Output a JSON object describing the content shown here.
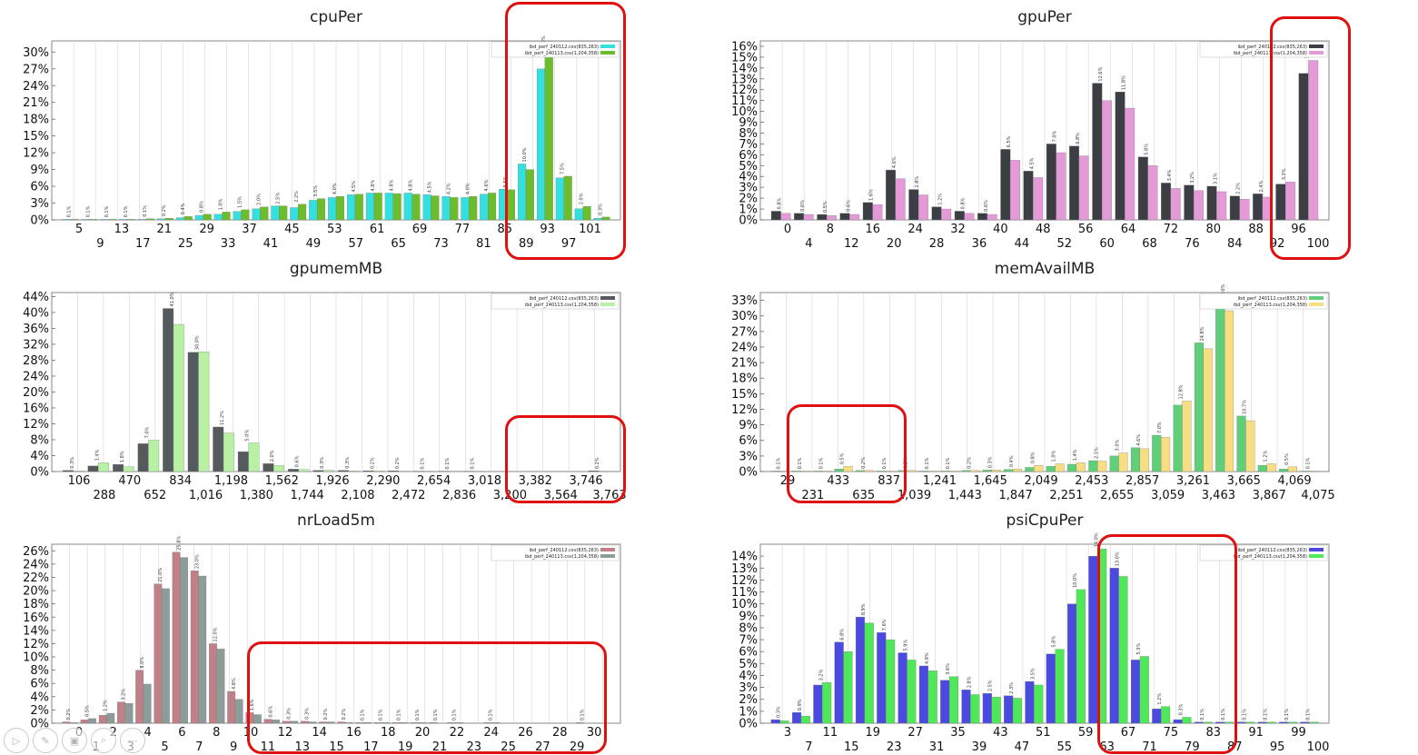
{
  "legend_labels": [
    "ibd_perf_240112.csv(835,263)",
    "ibd_perf_240113.csv(1,204,358)"
  ],
  "chart_data": [
    {
      "type": "bar",
      "title": "cpuPer",
      "colors": [
        "#33e0e0",
        "#6cbd2c"
      ],
      "ylim": [
        0,
        32
      ],
      "y_ticks": [
        "0%",
        "3%",
        "6%",
        "9%",
        "12%",
        "15%",
        "18%",
        "21%",
        "24%",
        "27%",
        "30%"
      ],
      "x_ticks_row1": [
        "5",
        "13",
        "21",
        "29",
        "37",
        "45",
        "53",
        "61",
        "69",
        "77",
        "85",
        "93",
        "101"
      ],
      "x_ticks_row2": [
        "9",
        "17",
        "25",
        "33",
        "41",
        "49",
        "57",
        "65",
        "73",
        "81",
        "89",
        "97"
      ],
      "series": [
        {
          "values": [
            0.1,
            0.1,
            0.1,
            0.1,
            0.1,
            0.2,
            0.4,
            0.8,
            1.0,
            1.5,
            2.0,
            2.5,
            2.2,
            3.5,
            4.0,
            4.5,
            4.8,
            4.8,
            4.8,
            4.5,
            4.2,
            4.0,
            4.6,
            5.5,
            10.0,
            27.0,
            7.5,
            2.0,
            0.3
          ]
        },
        {
          "values": [
            0.1,
            0.1,
            0.1,
            0.1,
            0.2,
            0.3,
            0.6,
            1.0,
            1.4,
            1.8,
            2.3,
            2.5,
            2.8,
            3.8,
            4.2,
            4.6,
            4.8,
            4.7,
            4.6,
            4.3,
            4.0,
            4.2,
            4.8,
            5.4,
            9.0,
            30.0,
            7.8,
            2.4,
            0.5
          ]
        }
      ],
      "data_labels": [
        "0.1%",
        "0.1%",
        "0.1%",
        "0.1%",
        "0.1%",
        "0.2%",
        "0.4%",
        "0.8%",
        "1.0%",
        "1.5%",
        "2.0%",
        "2.5%",
        "2.2%",
        "3.5%",
        "4.0%",
        "4.5%",
        "4.8%",
        "4.8%",
        "4.8%",
        "4.5%",
        "4.2%",
        "4.0%",
        "4.6%",
        "5.5%",
        "10.0%",
        "27.0%",
        "7.5%",
        "2.0%",
        "0.3%"
      ]
    },
    {
      "type": "bar",
      "title": "gpuPer",
      "colors": [
        "#3b3f44",
        "#e59ad8"
      ],
      "ylim": [
        0,
        16.5
      ],
      "y_ticks": [
        "0%",
        "1%",
        "2%",
        "3%",
        "4%",
        "5%",
        "6%",
        "7%",
        "8%",
        "9%",
        "10%",
        "11%",
        "12%",
        "13%",
        "14%",
        "15%",
        "16%"
      ],
      "x_ticks_row1": [
        "0",
        "8",
        "16",
        "24",
        "32",
        "40",
        "48",
        "56",
        "64",
        "72",
        "80",
        "88",
        "96"
      ],
      "x_ticks_row2": [
        "4",
        "12",
        "20",
        "28",
        "36",
        "44",
        "52",
        "60",
        "68",
        "76",
        "84",
        "92",
        "100"
      ],
      "series": [
        {
          "values": [
            0.8,
            0.6,
            0.5,
            0.6,
            1.6,
            4.6,
            2.8,
            1.2,
            0.8,
            0.6,
            6.5,
            4.5,
            7.0,
            6.8,
            12.6,
            11.8,
            5.8,
            3.4,
            3.2,
            3.1,
            2.2,
            2.4,
            3.3,
            13.5
          ]
        },
        {
          "values": [
            0.6,
            0.5,
            0.4,
            0.5,
            1.4,
            3.8,
            2.3,
            1.0,
            0.6,
            0.5,
            5.5,
            3.9,
            6.2,
            5.9,
            11.0,
            10.3,
            5.0,
            2.9,
            2.7,
            2.6,
            1.9,
            2.1,
            3.5,
            14.7
          ]
        }
      ],
      "data_labels": [
        "0.8%",
        "0.6%",
        "0.5%",
        "0.6%",
        "1.6%",
        "4.6%",
        "2.8%",
        "1.2%",
        "0.8%",
        "0.6%",
        "6.5%",
        "4.5%",
        "7.0%",
        "6.8%",
        "12.6%",
        "11.8%",
        "5.8%",
        "3.4%",
        "3.2%",
        "3.1%",
        "2.2%",
        "2.4%",
        "3.3%",
        "13.5%"
      ]
    },
    {
      "type": "bar",
      "title": "gpumemMB",
      "colors": [
        "#555a5e",
        "#b8f0a4"
      ],
      "ylim": [
        0,
        45
      ],
      "y_ticks": [
        "0%",
        "4%",
        "8%",
        "12%",
        "16%",
        "20%",
        "24%",
        "28%",
        "32%",
        "36%",
        "40%",
        "44%"
      ],
      "x_ticks_row1": [
        "106",
        "470",
        "834",
        "1,198",
        "1,562",
        "1,926",
        "2,290",
        "2,654",
        "3,018",
        "3,382",
        "3,746"
      ],
      "x_ticks_row2": [
        "288",
        "652",
        "1,016",
        "1,380",
        "1,744",
        "2,108",
        "2,472",
        "2,836",
        "3,200",
        "3,564",
        "3,763"
      ],
      "series": [
        {
          "values": [
            0.3,
            1.4,
            1.8,
            7.0,
            41.0,
            30.0,
            11.2,
            5.0,
            2.0,
            0.6,
            0.3,
            0.3,
            0.2,
            0.2,
            0.1,
            0.1,
            0.1,
            0,
            0,
            0,
            0,
            0.2
          ]
        },
        {
          "values": [
            0.2,
            2.2,
            1.2,
            7.9,
            37.0,
            30.1,
            9.7,
            7.2,
            1.5,
            0.5,
            0.3,
            0.2,
            0.2,
            0.1,
            0.1,
            0.1,
            0.1,
            0,
            0,
            0,
            0,
            0.1
          ]
        }
      ],
      "data_labels": [
        "0.3%",
        "1.4%",
        "1.8%",
        "7.0%",
        "41.0%",
        "30.0%",
        "11.2%",
        "5.0%",
        "2.0%",
        "0.6%",
        "0.3%",
        "0.3%",
        "0.2%",
        "0.2%",
        "0.1%",
        "0.1%",
        "0.1%",
        "",
        "",
        "",
        "",
        "0.2%"
      ]
    },
    {
      "type": "bar",
      "title": "memAvailMB",
      "colors": [
        "#5fcf7a",
        "#f8de82"
      ],
      "ylim": [
        0,
        34.5
      ],
      "y_ticks": [
        "0%",
        "3%",
        "6%",
        "9%",
        "12%",
        "15%",
        "18%",
        "21%",
        "24%",
        "27%",
        "30%",
        "33%"
      ],
      "x_ticks_row1": [
        "29",
        "433",
        "837",
        "1,241",
        "1,645",
        "2,049",
        "2,453",
        "2,857",
        "3,261",
        "3,665",
        "4,069"
      ],
      "x_ticks_row2": [
        "231",
        "635",
        "1,039",
        "1,443",
        "1,847",
        "2,251",
        "2,655",
        "3,059",
        "3,463",
        "3,867",
        "4,075"
      ],
      "series": [
        {
          "values": [
            0.1,
            0.1,
            0.1,
            0.5,
            0.2,
            0.1,
            0.2,
            0.1,
            0.1,
            0.2,
            0.3,
            0.4,
            0.8,
            1.0,
            1.4,
            2.1,
            3.0,
            4.6,
            7.0,
            12.8,
            24.8,
            33.0,
            10.7,
            1.2,
            0.5,
            0.1
          ]
        },
        {
          "values": [
            0.1,
            0.1,
            0.1,
            1.0,
            0.2,
            0.1,
            0.2,
            0.1,
            0.1,
            0.2,
            0.3,
            0.5,
            1.2,
            1.5,
            1.7,
            2.0,
            3.6,
            4.4,
            6.6,
            13.6,
            23.7,
            31.0,
            9.8,
            1.5,
            0.9,
            0.1
          ]
        }
      ],
      "data_labels": [
        "0.1%",
        "0.1%",
        "0.1%",
        "0.5%",
        "0.2%",
        "0.1%",
        "0.2%",
        "0.1%",
        "0.1%",
        "0.2%",
        "0.3%",
        "0.4%",
        "0.8%",
        "1.0%",
        "1.4%",
        "2.1%",
        "3.0%",
        "4.6%",
        "7.0%",
        "12.8%",
        "24.8%",
        "33.0%",
        "10.7%",
        "1.2%",
        "0.5%",
        "0.1%"
      ]
    },
    {
      "type": "bar",
      "title": "nrLoad5m",
      "colors": [
        "#c08088",
        "#8c9c98"
      ],
      "ylim": [
        0,
        27
      ],
      "y_ticks": [
        "0%",
        "2%",
        "4%",
        "6%",
        "8%",
        "10%",
        "12%",
        "14%",
        "16%",
        "18%",
        "20%",
        "22%",
        "24%",
        "26%"
      ],
      "x_ticks_row1": [
        "0",
        "2",
        "4",
        "6",
        "8",
        "10",
        "12",
        "14",
        "16",
        "18",
        "20",
        "22",
        "24",
        "26",
        "28",
        "30"
      ],
      "x_ticks_row2": [
        "1",
        "3",
        "5",
        "7",
        "9",
        "11",
        "13",
        "15",
        "17",
        "19",
        "21",
        "23",
        "25",
        "27",
        "29"
      ],
      "series": [
        {
          "values": [
            0.2,
            0.5,
            1.2,
            3.2,
            8.0,
            21.0,
            25.8,
            23.0,
            12.0,
            4.8,
            1.6,
            0.6,
            0.3,
            0.3,
            0.2,
            0.2,
            0.1,
            0.1,
            0.1,
            0.1,
            0.1,
            0.1,
            0,
            0.1,
            0,
            0,
            0,
            0,
            0.1,
            0
          ]
        },
        {
          "values": [
            0.1,
            0.7,
            1.5,
            3.0,
            5.9,
            20.3,
            25.0,
            22.2,
            11.2,
            3.6,
            1.3,
            0.5,
            0.3,
            0.2,
            0.2,
            0.1,
            0.1,
            0.1,
            0.1,
            0.1,
            0,
            0.1,
            0,
            0.1,
            0,
            0,
            0,
            0,
            0,
            0
          ]
        }
      ],
      "data_labels": [
        "0.2%",
        "0.5%",
        "1.2%",
        "3.2%",
        "8.0%",
        "21.0%",
        "25.8%",
        "23.0%",
        "12.0%",
        "4.8%",
        "1.6%",
        "0.6%",
        "0.3%",
        "0.3%",
        "0.2%",
        "0.2%",
        "0.1%",
        "0.1%",
        "0.1%",
        "0.1%",
        "0.1%",
        "0.1%",
        "",
        "0.1%",
        "",
        "",
        "",
        "",
        "0.1%",
        ""
      ]
    },
    {
      "type": "bar",
      "title": "psiCpuPer",
      "colors": [
        "#4a4ae0",
        "#4ee858"
      ],
      "ylim": [
        0,
        15
      ],
      "y_ticks": [
        "0%",
        "1%",
        "2%",
        "3%",
        "4%",
        "5%",
        "6%",
        "7%",
        "8%",
        "9%",
        "10%",
        "11%",
        "12%",
        "13%",
        "14%"
      ],
      "x_ticks_row1": [
        "3",
        "11",
        "19",
        "27",
        "35",
        "43",
        "51",
        "59",
        "67",
        "75",
        "83",
        "91",
        "99"
      ],
      "x_ticks_row2": [
        "7",
        "15",
        "23",
        "31",
        "39",
        "47",
        "55",
        "63",
        "71",
        "79",
        "87",
        "95",
        "100"
      ],
      "series": [
        {
          "values": [
            0.3,
            0.9,
            3.2,
            6.8,
            8.9,
            7.6,
            5.9,
            4.8,
            3.6,
            2.8,
            2.5,
            2.3,
            3.5,
            5.8,
            10.0,
            14.0,
            13.0,
            5.3,
            1.2,
            0.3,
            0.1,
            0.1,
            0.1,
            0.1,
            0.1,
            0.1
          ]
        },
        {
          "values": [
            0.2,
            0.6,
            3.4,
            6.0,
            8.4,
            7.0,
            5.3,
            4.4,
            3.9,
            2.4,
            2.2,
            2.1,
            3.2,
            6.2,
            11.2,
            14.6,
            12.3,
            5.6,
            1.4,
            0.5,
            0.1,
            0.1,
            0.1,
            0.1,
            0.1,
            0.1
          ]
        }
      ],
      "data_labels": [
        "0.3%",
        "0.9%",
        "3.2%",
        "6.8%",
        "8.9%",
        "7.6%",
        "5.9%",
        "4.8%",
        "3.6%",
        "2.8%",
        "2.5%",
        "2.3%",
        "3.5%",
        "5.8%",
        "10.0%",
        "14.0%",
        "13.0%",
        "5.3%",
        "1.2%",
        "0.3%",
        "0.1%",
        "0.1%",
        "0.1%",
        "0.1%",
        "0.1%",
        "0.1%"
      ]
    }
  ],
  "controls": {
    "play_icon": "▷",
    "pen_icon": "✎",
    "slides_icon": "▣",
    "zoom_icon": "⌕",
    "more_icon": "⋯"
  }
}
